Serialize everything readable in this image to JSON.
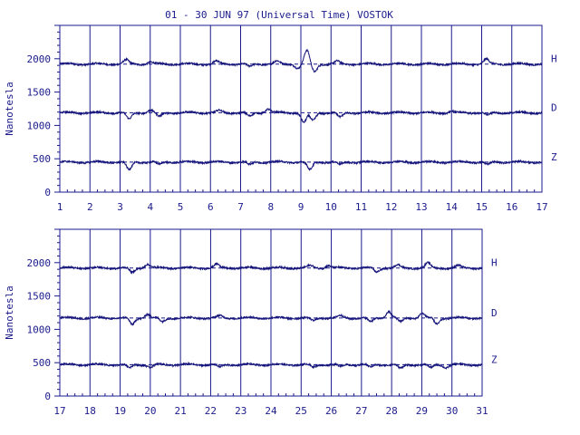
{
  "title": "01 - 30 JUN 97 (Universal Time) VOSTOK",
  "colors": {
    "ink": "#1a1a8c",
    "trace": "#14147a",
    "background": "#ffffff"
  },
  "chart_data": [
    {
      "type": "line",
      "ylabel": "Nanotesla",
      "xlim": [
        1,
        17
      ],
      "x_ticks": [
        "1",
        "2",
        "3",
        "4",
        "5",
        "6",
        "7",
        "8",
        "9",
        "10",
        "11",
        "12",
        "13",
        "14",
        "15",
        "16",
        "17"
      ],
      "ylim": [
        0,
        2500
      ],
      "y_ticks": [
        "0",
        "500",
        "1000",
        "1500",
        "2000"
      ],
      "grid": "vertical lines at each day",
      "series": [
        {
          "name": "H",
          "baseline": 1920,
          "disturbances": [
            [
              3.2,
              60
            ],
            [
              4.0,
              30
            ],
            [
              6.2,
              40
            ],
            [
              7.3,
              -40
            ],
            [
              8.2,
              40
            ],
            [
              8.9,
              -60
            ],
            [
              9.2,
              200
            ],
            [
              9.45,
              -120
            ],
            [
              10.2,
              40
            ],
            [
              15.15,
              70
            ]
          ]
        },
        {
          "name": "D",
          "baseline": 1190,
          "disturbances": [
            [
              3.3,
              -100
            ],
            [
              4.0,
              40
            ],
            [
              4.3,
              -60
            ],
            [
              6.3,
              30
            ],
            [
              7.3,
              -60
            ],
            [
              7.9,
              60
            ],
            [
              9.1,
              -150
            ],
            [
              9.4,
              -120
            ],
            [
              10.3,
              -70
            ],
            [
              14.0,
              20
            ],
            [
              15.2,
              -40
            ]
          ]
        },
        {
          "name": "Z",
          "baseline": 450,
          "disturbances": [
            [
              3.3,
              -120
            ],
            [
              4.3,
              -40
            ],
            [
              7.3,
              -40
            ],
            [
              9.3,
              -120
            ],
            [
              10.3,
              -40
            ],
            [
              15.2,
              -40
            ]
          ]
        }
      ]
    },
    {
      "type": "line",
      "ylabel": "Nanotesla",
      "xlim": [
        17,
        31
      ],
      "x_ticks": [
        "17",
        "18",
        "19",
        "20",
        "21",
        "22",
        "23",
        "24",
        "25",
        "26",
        "27",
        "28",
        "29",
        "30",
        "31"
      ],
      "ylim": [
        0,
        2500
      ],
      "y_ticks": [
        "0",
        "500",
        "1000",
        "1500",
        "2000"
      ],
      "grid": "vertical lines at each day",
      "series": [
        {
          "name": "H",
          "baseline": 1920,
          "disturbances": [
            [
              19.4,
              -70
            ],
            [
              19.9,
              60
            ],
            [
              22.2,
              50
            ],
            [
              25.3,
              30
            ],
            [
              25.9,
              40
            ],
            [
              27.5,
              -60
            ],
            [
              28.2,
              40
            ],
            [
              29.2,
              70
            ],
            [
              30.2,
              30
            ]
          ]
        },
        {
          "name": "D",
          "baseline": 1170,
          "disturbances": [
            [
              19.4,
              -100
            ],
            [
              19.9,
              60
            ],
            [
              20.4,
              -60
            ],
            [
              22.3,
              30
            ],
            [
              25.4,
              -40
            ],
            [
              26.3,
              30
            ],
            [
              27.3,
              -60
            ],
            [
              27.9,
              100
            ],
            [
              28.3,
              -60
            ],
            [
              29.0,
              70
            ],
            [
              29.5,
              -90
            ]
          ]
        },
        {
          "name": "Z",
          "baseline": 470,
          "disturbances": [
            [
              19.3,
              -50
            ],
            [
              20.0,
              -40
            ],
            [
              22.3,
              -40
            ],
            [
              25.4,
              -40
            ],
            [
              26.3,
              -30
            ],
            [
              27.3,
              -40
            ],
            [
              28.3,
              -60
            ],
            [
              29.3,
              -50
            ],
            [
              29.8,
              -40
            ]
          ]
        }
      ]
    }
  ]
}
